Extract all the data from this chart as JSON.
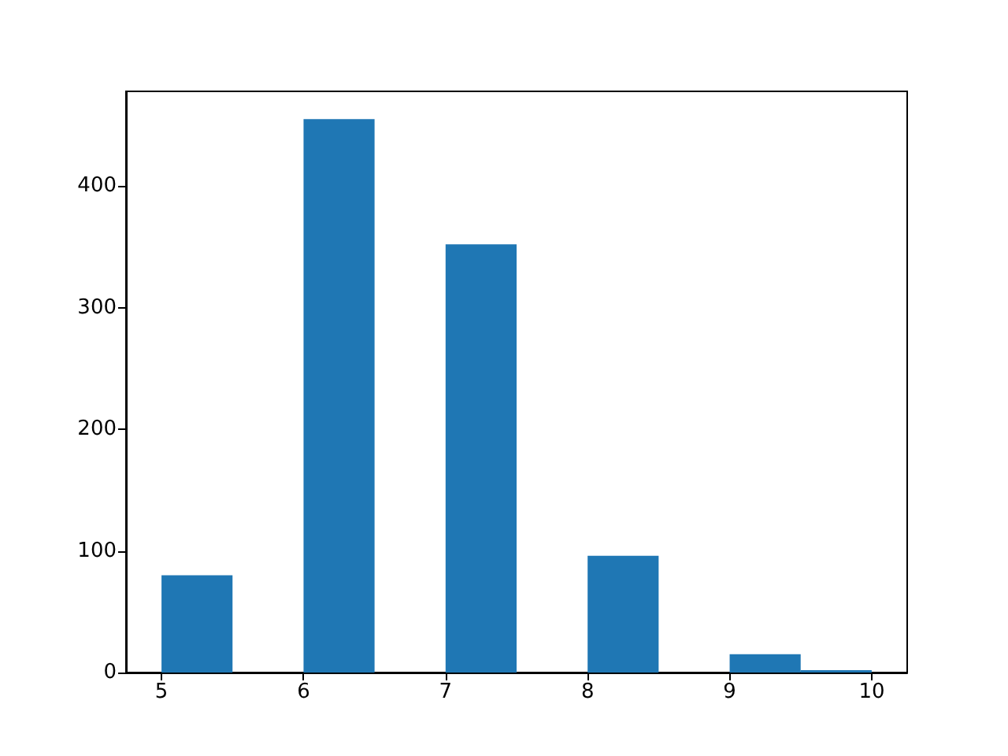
{
  "chart_data": {
    "type": "histogram",
    "bins": [
      5,
      5.5,
      6,
      6.5,
      7,
      7.5,
      8,
      8.5,
      9,
      9.5,
      10
    ],
    "values": [
      80,
      0,
      455,
      0,
      352,
      0,
      96,
      0,
      15,
      2
    ],
    "color": "#1f77b4",
    "xlim": [
      4.75,
      10.25
    ],
    "xticks": [
      5,
      6,
      7,
      8,
      9,
      10
    ],
    "ylim": [
      0,
      477.75
    ],
    "yticks": [
      0,
      100,
      200,
      300,
      400
    ],
    "grid": false
  }
}
